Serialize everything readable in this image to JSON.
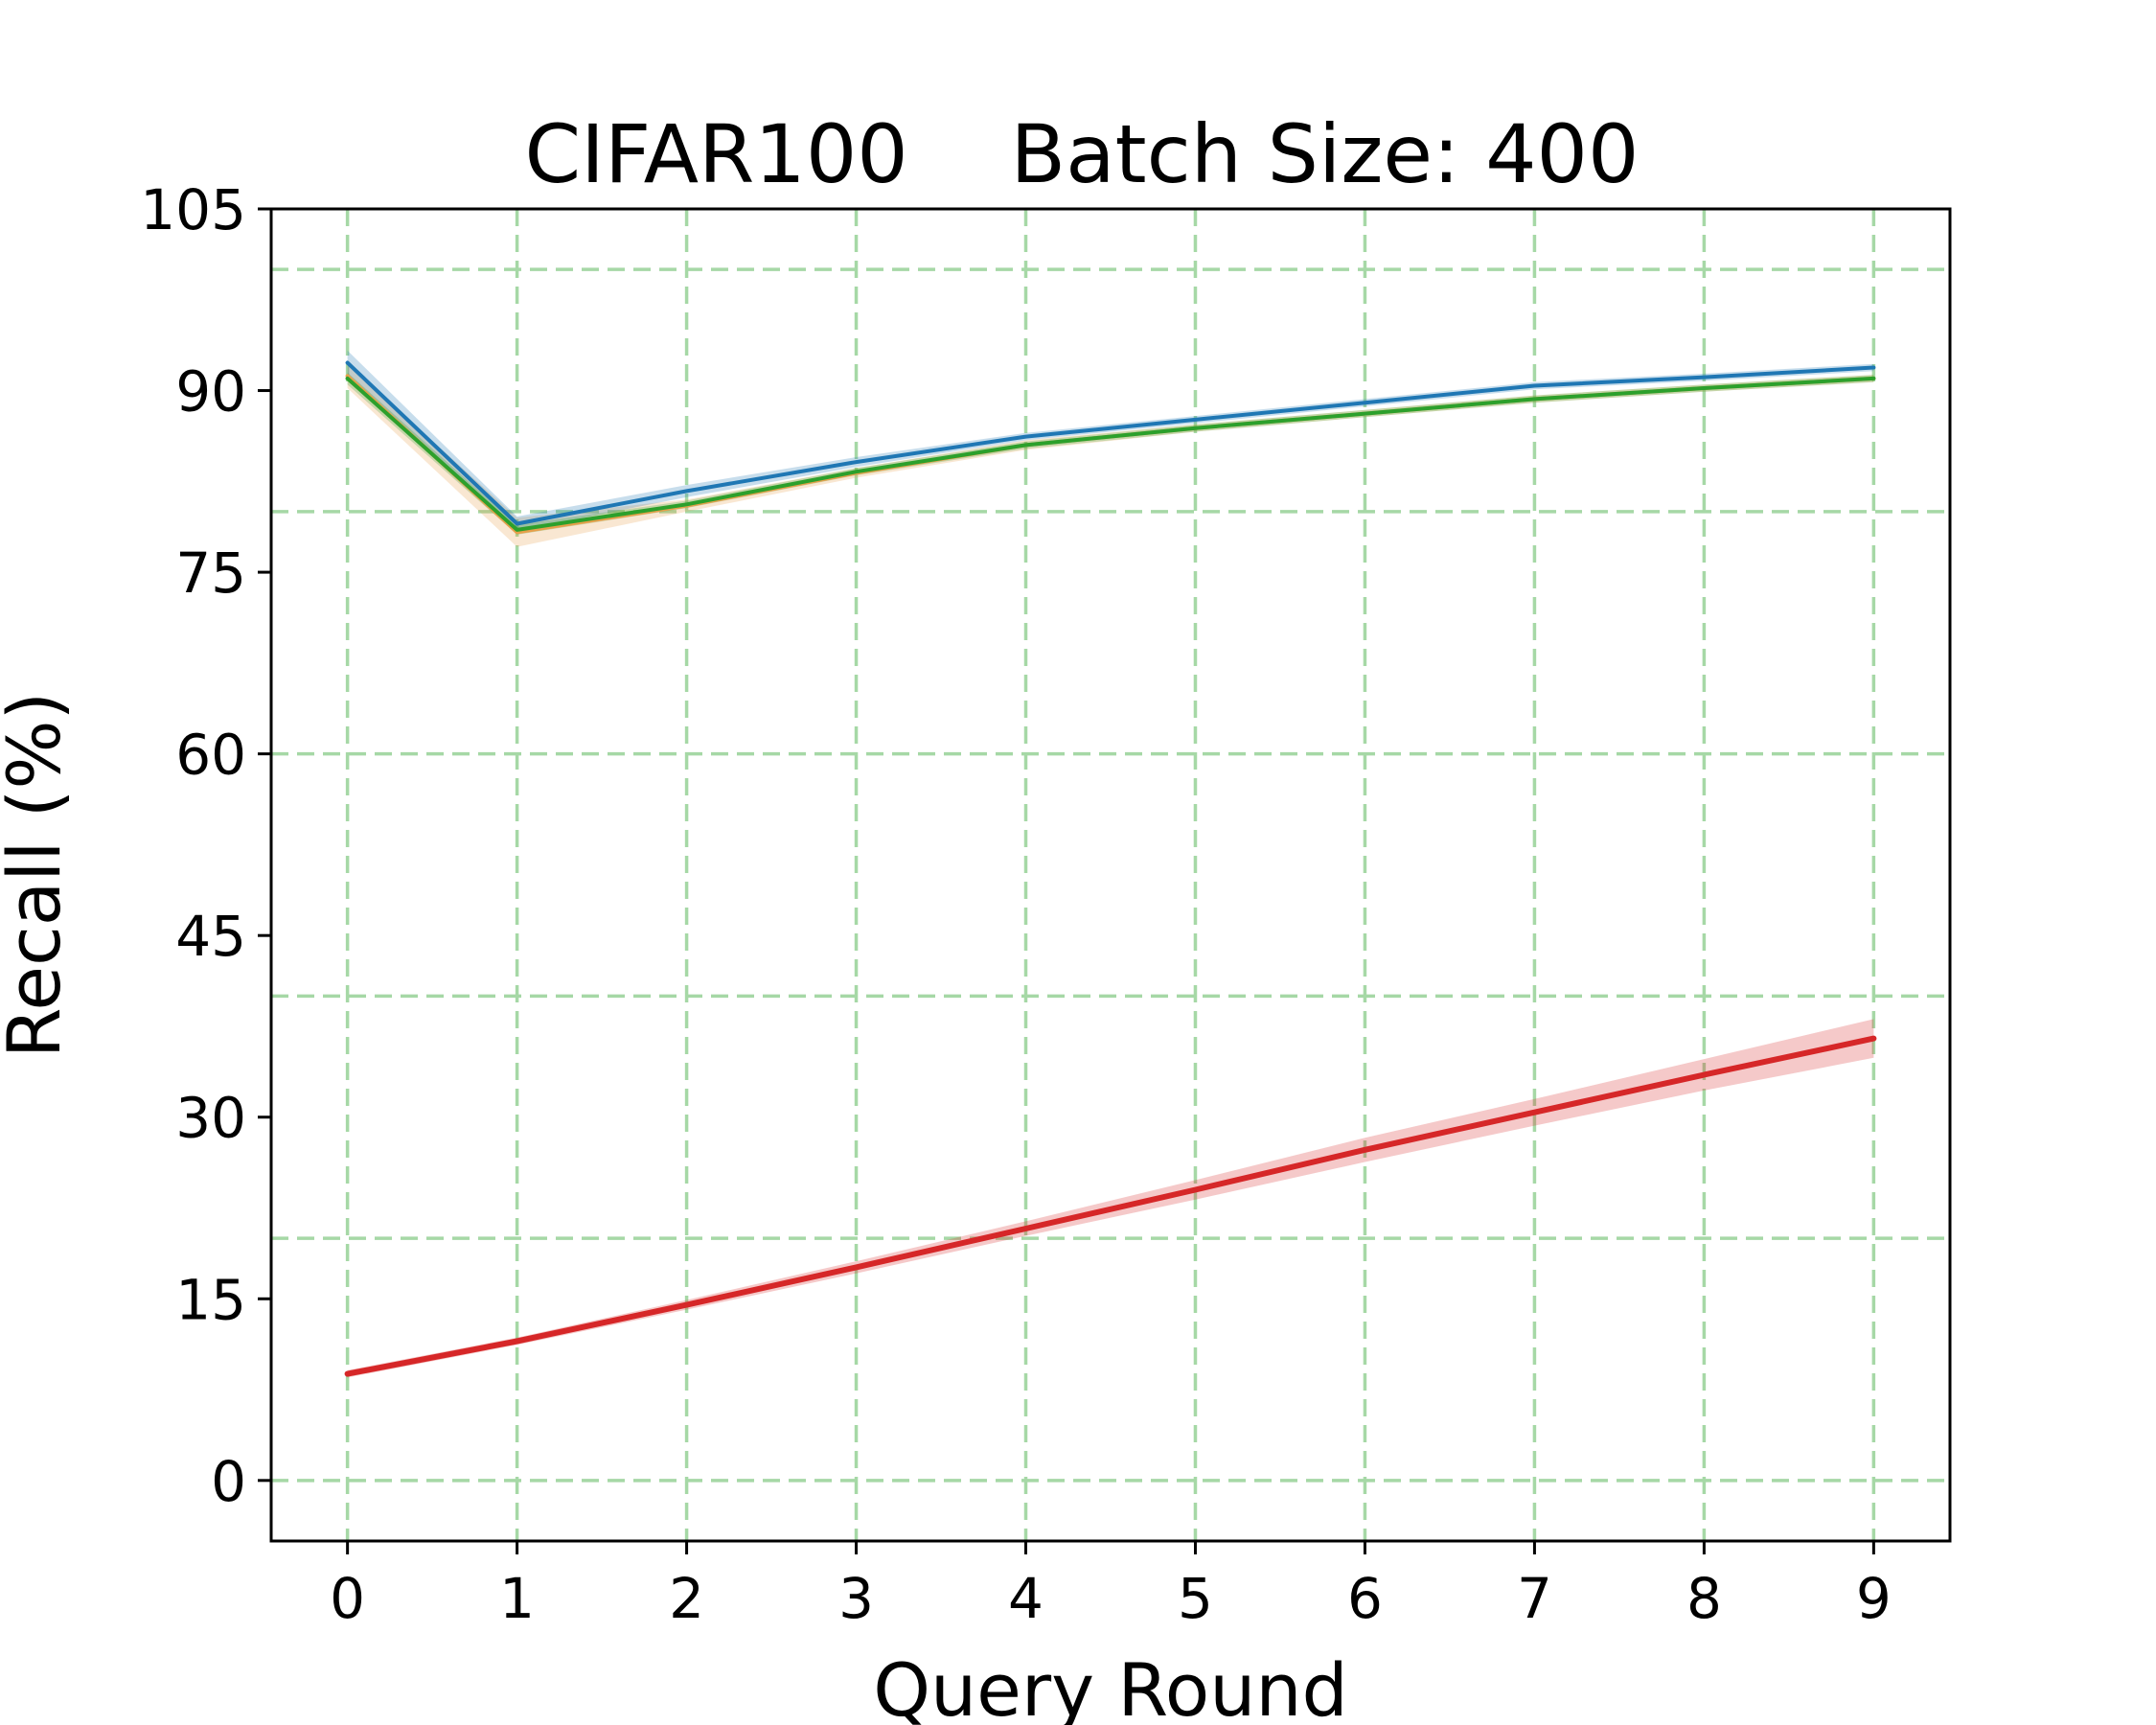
{
  "chart_data": {
    "type": "line",
    "title": "CIFAR100    Batch Size: 400",
    "xlabel": "Query Round",
    "ylabel": "Recall (%)",
    "x": [
      0,
      1,
      2,
      3,
      4,
      5,
      6,
      7,
      8,
      9
    ],
    "xticks": [
      "0",
      "1",
      "2",
      "3",
      "4",
      "5",
      "6",
      "7",
      "8",
      "9"
    ],
    "xlim": [
      -0.45,
      9.45
    ],
    "ylim": [
      -5,
      105
    ],
    "yticks": [
      "0",
      "15",
      "30",
      "45",
      "60",
      "75",
      "90",
      "105"
    ],
    "ytick_values": [
      0,
      15,
      30,
      45,
      60,
      75,
      90,
      105
    ],
    "grid": true,
    "grid_color": "#a6d8a6",
    "grid_y_values": [
      0,
      20,
      40,
      60,
      80,
      100
    ],
    "series": [
      {
        "color": "#e7a04b",
        "values": [
          91.2,
          78.3,
          80.5,
          83.2,
          85.5,
          86.9,
          88.1,
          89.3,
          90.2,
          91.0
        ],
        "band": [
          1.0,
          1.2,
          0.5,
          0.4,
          0.4,
          0.3,
          0.3,
          0.3,
          0.3,
          0.3
        ],
        "width": 4
      },
      {
        "color": "#1f77b4",
        "values": [
          92.3,
          79.0,
          81.7,
          84.1,
          86.2,
          87.6,
          89.0,
          90.4,
          91.1,
          91.9
        ],
        "band": [
          1.0,
          0.6,
          0.5,
          0.4,
          0.3,
          0.3,
          0.3,
          0.3,
          0.3,
          0.3
        ],
        "width": 4
      },
      {
        "color": "#2ca02c",
        "values": [
          91.0,
          78.5,
          80.6,
          83.3,
          85.5,
          86.9,
          88.1,
          89.3,
          90.2,
          91.0
        ],
        "band": [
          0.5,
          0.4,
          0.3,
          0.3,
          0.3,
          0.3,
          0.3,
          0.3,
          0.3,
          0.3
        ],
        "width": 4
      },
      {
        "color": "#d62728",
        "values": [
          8.8,
          11.5,
          14.5,
          17.6,
          20.8,
          24.0,
          27.3,
          30.4,
          33.5,
          36.5
        ],
        "band": [
          0.3,
          0.3,
          0.4,
          0.5,
          0.6,
          0.8,
          1.0,
          1.1,
          1.3,
          1.6
        ],
        "width": 6
      }
    ]
  }
}
